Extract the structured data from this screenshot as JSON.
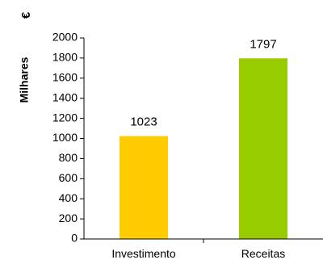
{
  "chart_data": {
    "type": "bar",
    "categories": [
      "Investimento",
      "Receitas"
    ],
    "values": [
      1023,
      1797
    ],
    "data_labels": [
      "1023",
      "1797"
    ],
    "colors": [
      "#FFCC00",
      "#99CC00"
    ],
    "ylabel": "Milhares",
    "yunit": "€",
    "ylim": [
      0,
      2000
    ],
    "yticks": [
      0,
      200,
      400,
      600,
      800,
      1000,
      1200,
      1400,
      1600,
      1800,
      2000
    ],
    "ytick_labels": [
      "0",
      "200",
      "400",
      "600",
      "800",
      "1000",
      "1200",
      "1400",
      "1600",
      "1800",
      "2000"
    ],
    "grid": false,
    "legend": "none"
  }
}
